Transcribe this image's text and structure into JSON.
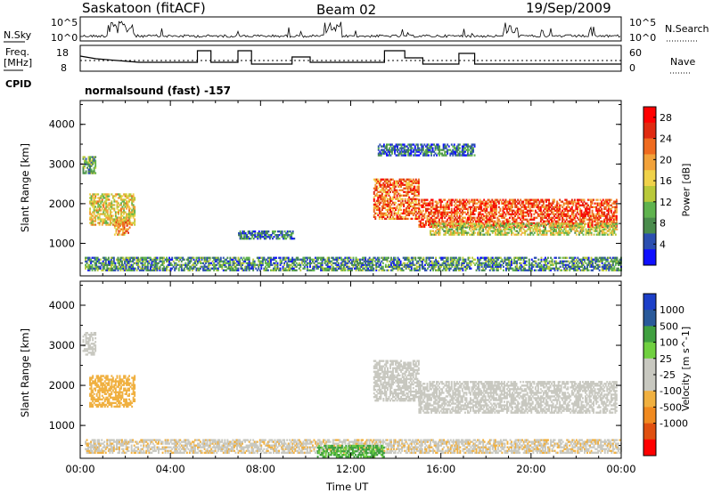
{
  "header": {
    "title": "Saskatoon (fitACF)",
    "beam": "Beam 02",
    "date": "19/Sep/2009"
  },
  "summary_panel": {
    "left_labels": [
      "N.Sky",
      "Freq.",
      "[MHz]",
      "CPID"
    ],
    "right_labels": [
      "N.Search",
      "Nave"
    ],
    "noise_ticks": [
      "10^5",
      "10^0"
    ],
    "freq_ticks": [
      "18",
      "8"
    ],
    "nave_ticks": [
      "60",
      "0"
    ],
    "cpid_text": "normalsound (fast) -157"
  },
  "colors": {
    "power_scale": [
      "#1010ff",
      "#2c4fb0",
      "#4a8c4c",
      "#5fb34e",
      "#b9c93a",
      "#f0d24a",
      "#f2a23a",
      "#ef6b1f",
      "#e02a10",
      "#ff0000"
    ],
    "velocity_scale": [
      "#1c3fc8",
      "#2a5a9a",
      "#40a040",
      "#70d040",
      "#c8c8c0",
      "#c8c8c0",
      "#f0b040",
      "#f08a20",
      "#e05010",
      "#ff0000"
    ]
  },
  "chart_data": [
    {
      "type": "heatmap",
      "title": "",
      "ylabel": "Slant Range [km]",
      "xlabel": "",
      "ylim": [
        180,
        4600
      ],
      "yticks": [
        "1000",
        "2000",
        "3000",
        "4000"
      ],
      "x_ticks": [
        "00:00",
        "04:00",
        "08:00",
        "12:00",
        "16:00",
        "20:00",
        "00:00"
      ],
      "colorbar": {
        "label": "Power [dB]",
        "ticks": [
          "4",
          "8",
          "12",
          "16",
          "20",
          "24",
          "28"
        ]
      },
      "regions": [
        {
          "t": [
            0.1,
            0.7
          ],
          "r": [
            2750,
            3200
          ],
          "val": 10
        },
        {
          "t": [
            0.4,
            2.4
          ],
          "r": [
            1450,
            2250
          ],
          "val": 16
        },
        {
          "t": [
            1.5,
            2.2
          ],
          "r": [
            1200,
            1600
          ],
          "val": 20
        },
        {
          "t": [
            0.2,
            24.0
          ],
          "r": [
            300,
            650
          ],
          "val": 8
        },
        {
          "t": [
            7.0,
            9.5
          ],
          "r": [
            1100,
            1300
          ],
          "val": 6
        },
        {
          "t": [
            13.0,
            15.0
          ],
          "r": [
            1600,
            2600
          ],
          "val": 22
        },
        {
          "t": [
            15.0,
            23.8
          ],
          "r": [
            1400,
            2100
          ],
          "val": 24
        },
        {
          "t": [
            15.5,
            23.8
          ],
          "r": [
            1200,
            1500
          ],
          "val": 14
        },
        {
          "t": [
            13.2,
            17.5
          ],
          "r": [
            3200,
            3500
          ],
          "val": 6
        }
      ]
    },
    {
      "type": "heatmap",
      "title": "",
      "ylabel": "Slant Range [km]",
      "xlabel": "Time UT",
      "ylim": [
        180,
        4600
      ],
      "yticks": [
        "1000",
        "2000",
        "3000",
        "4000"
      ],
      "x_ticks": [
        "00:00",
        "04:00",
        "08:00",
        "12:00",
        "16:00",
        "20:00",
        "00:00"
      ],
      "colorbar": {
        "label": "Velocity [m s^-1]",
        "ticks": [
          "1000",
          "500",
          "100",
          "25",
          "-25",
          "-100",
          "-500",
          "-1000"
        ]
      },
      "regions": [
        {
          "t": [
            0.1,
            0.7
          ],
          "r": [
            2750,
            3300
          ],
          "val": 0
        },
        {
          "t": [
            0.4,
            2.4
          ],
          "r": [
            1450,
            2250
          ],
          "val": -300
        },
        {
          "t": [
            0.2,
            24.0
          ],
          "r": [
            300,
            650
          ],
          "val": -80
        },
        {
          "t": [
            10.5,
            13.5
          ],
          "r": [
            200,
            500
          ],
          "val": 120
        },
        {
          "t": [
            13.0,
            15.0
          ],
          "r": [
            1600,
            2600
          ],
          "val": 0
        },
        {
          "t": [
            15.0,
            23.8
          ],
          "r": [
            1300,
            2100
          ],
          "val": 0
        }
      ]
    }
  ]
}
